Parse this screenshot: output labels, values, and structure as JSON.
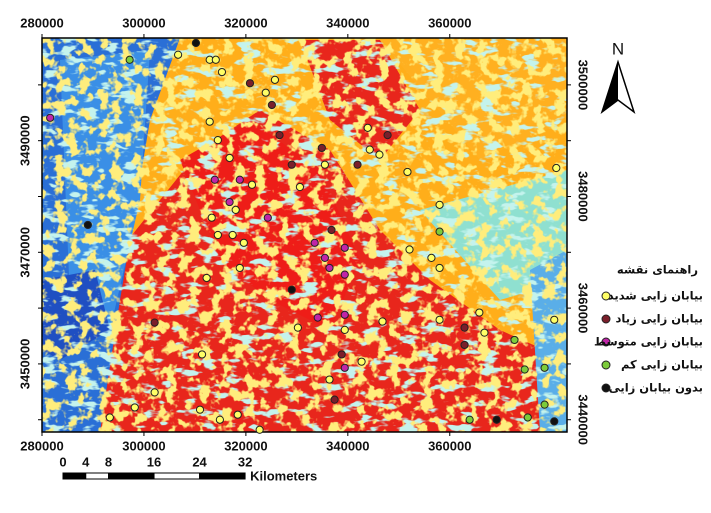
{
  "chart_data": {
    "type": "point-map",
    "xlim": [
      280000,
      383000
    ],
    "ylim": [
      3437800,
      3508400
    ],
    "xticks": [
      280000,
      300000,
      320000,
      340000,
      360000
    ],
    "yticks": [
      3440000,
      3450000,
      3460000,
      3470000,
      3480000,
      3490000,
      3500000
    ],
    "north_label": "N",
    "legend_title": "راهنمای نقشه",
    "scale_bar": {
      "labels": [
        0,
        4,
        8,
        16,
        24,
        32
      ],
      "unit": "Kilometers"
    },
    "series": [
      {
        "name": "بیابان زایی شدید",
        "color": "#ffff66",
        "x": [
          306700,
          312900,
          314100,
          315300,
          323900,
          325700,
          312900,
          314500,
          316800,
          321200,
          318000,
          313300,
          314500,
          317400,
          319600,
          318800,
          312300,
          330600,
          335500,
          343900,
          346200,
          351700,
          358000,
          352100,
          356400,
          358000,
          330200,
          342700,
          346800,
          358000,
          365800,
          366800,
          380500,
          311400,
          302100,
          298200,
          293300,
          311000,
          314900,
          318400,
          322700,
          336400,
          339400,
          344300,
          380900
        ],
        "y": [
          3505400,
          3504500,
          3504500,
          3502300,
          3498600,
          3500900,
          3493400,
          3490100,
          3486900,
          3482100,
          3477600,
          3476200,
          3473100,
          3473100,
          3471700,
          3467200,
          3465400,
          3481700,
          3485700,
          3492300,
          3487500,
          3484400,
          3478500,
          3470500,
          3469000,
          3467200,
          3456500,
          3450400,
          3457600,
          3457900,
          3459200,
          3455600,
          3457900,
          3451700,
          3444900,
          3442200,
          3440400,
          3441800,
          3440000,
          3440900,
          3438200,
          3447200,
          3456100,
          3488400,
          3485100
        ]
      },
      {
        "name": "بیابان زایی زیاد",
        "color": "#7a1f2b",
        "x": [
          320800,
          325100,
          326600,
          302100,
          334900,
          336800,
          341900,
          347800,
          338800,
          337400,
          362900,
          362900,
          329000
        ],
        "y": [
          3500300,
          3496400,
          3491000,
          3457400,
          3488700,
          3474000,
          3485700,
          3491000,
          3451700,
          3443600,
          3456500,
          3453400,
          3485700
        ]
      },
      {
        "name": "بیابان زایی متوسط",
        "color": "#c026a8",
        "x": [
          313900,
          318800,
          316800,
          324300,
          333500,
          335500,
          336400,
          339400,
          339400,
          334100,
          339400,
          339400,
          281600
        ],
        "y": [
          3483000,
          3483000,
          3479000,
          3476200,
          3471700,
          3469000,
          3467200,
          3470800,
          3466000,
          3458300,
          3458800,
          3449300,
          3494100
        ]
      },
      {
        "name": "بیابان زایی کم",
        "color": "#7ccc3a",
        "x": [
          297200,
          358000,
          363900,
          372700,
          374700,
          378600,
          378600,
          375300
        ],
        "y": [
          3504500,
          3473700,
          3440000,
          3454300,
          3449000,
          3449300,
          3442700,
          3440400
        ]
      },
      {
        "name": "بدون بیابان زایی",
        "color": "#111111",
        "x": [
          289000,
          310200,
          329000,
          369200,
          380500
        ],
        "y": [
          3474900,
          3507500,
          3463300,
          3440000,
          3439700
        ]
      }
    ]
  }
}
